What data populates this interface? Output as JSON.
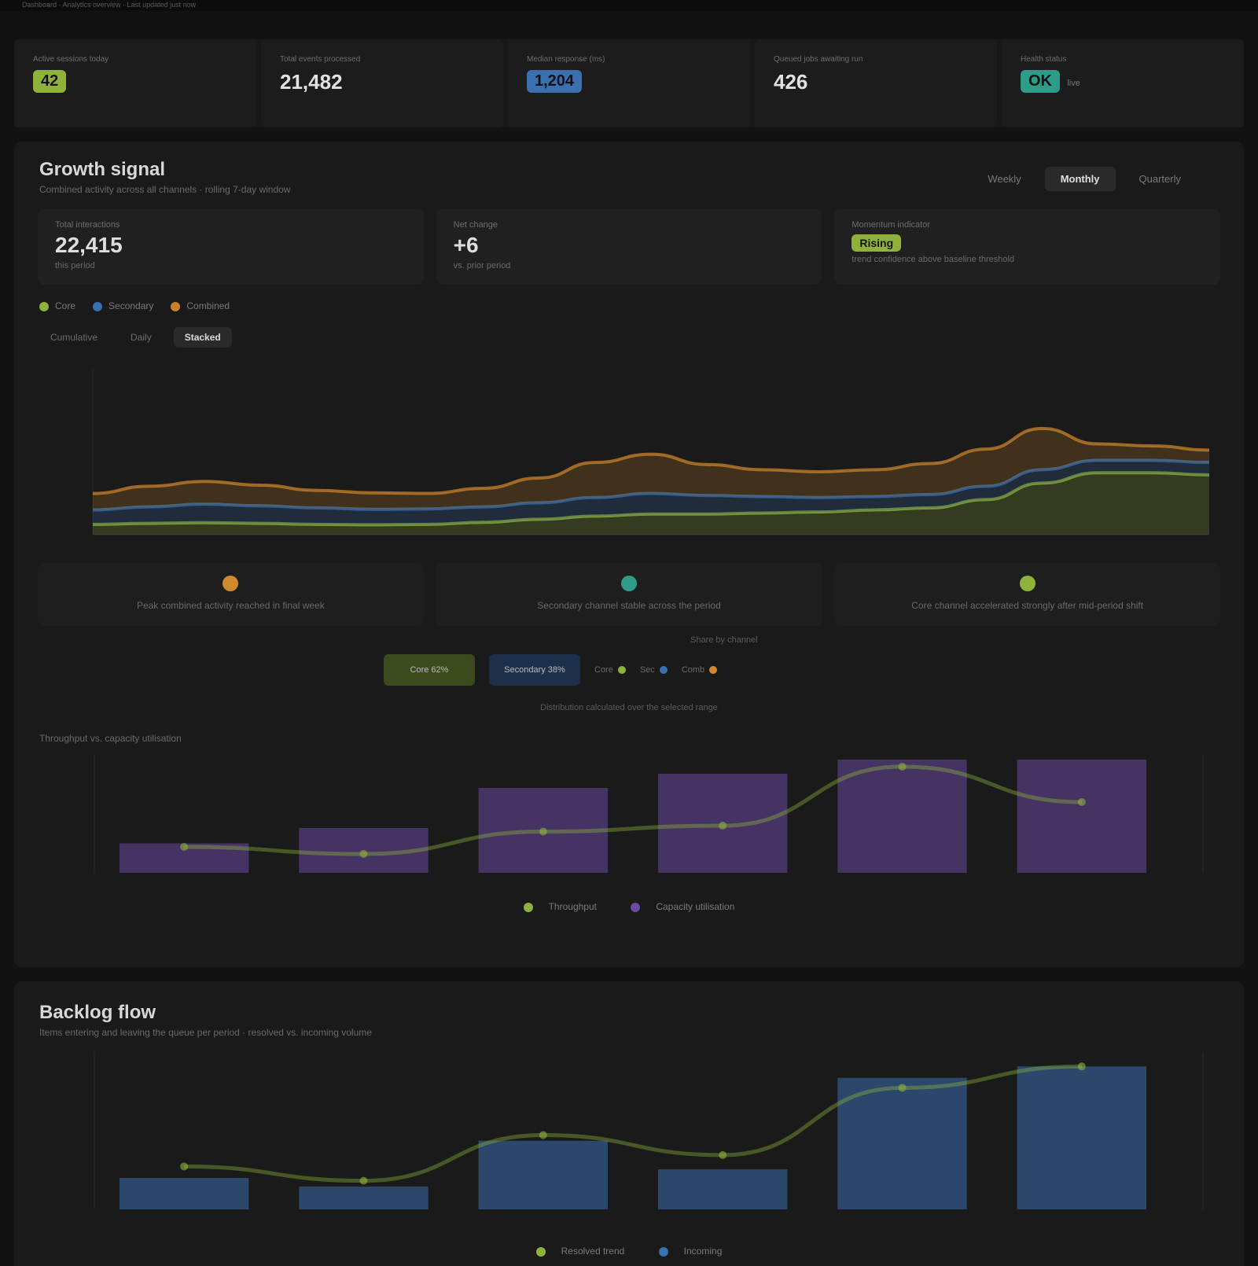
{
  "topbar": {
    "text": "Dashboard · Analytics overview · Last updated just now"
  },
  "stats": [
    {
      "label": "Active sessions today",
      "value": "42",
      "pill_color": "#8fb33a",
      "suffix": ""
    },
    {
      "label": "Total events processed",
      "value": "21,482",
      "pill_color": "",
      "suffix": ""
    },
    {
      "label": "Median response (ms)",
      "value": "1,204",
      "pill_color": "#3a6fb0",
      "suffix": ""
    },
    {
      "label": "Queued jobs awaiting run",
      "value": "426",
      "pill_color": "",
      "suffix": ""
    },
    {
      "label": "Health status",
      "value": "OK",
      "pill_color": "#2f9c8a",
      "suffix": "live"
    }
  ],
  "growth": {
    "title": "Growth signal",
    "subtitle": "Combined activity across all channels · rolling 7-day window",
    "tabs": [
      "Weekly",
      "Monthly",
      "Quarterly"
    ],
    "active_tab": 1,
    "kpis": [
      {
        "label": "Total interactions",
        "value": "22,415",
        "sub": "this period",
        "pill_color": ""
      },
      {
        "label": "Net change",
        "value": "+6",
        "sub": "vs. prior period",
        "pill_color": ""
      },
      {
        "label": "Momentum indicator",
        "value": "Rising",
        "sub": "trend confidence above baseline threshold",
        "pill_color": "#8fb33a"
      }
    ],
    "legend": [
      {
        "label": "Core",
        "color": "#8fb33a"
      },
      {
        "label": "Secondary",
        "color": "#3a6fb0"
      },
      {
        "label": "Combined",
        "color": "#c9822a"
      }
    ],
    "ranges": [
      "Cumulative",
      "Daily",
      "Stacked"
    ],
    "active_range": 2,
    "insights": [
      {
        "color": "#d08a2c",
        "text": "Peak combined activity reached in final week"
      },
      {
        "color": "#2f9c8a",
        "text": "Secondary channel stable across the period"
      },
      {
        "color": "#8fb33a",
        "text": "Core channel accelerated strongly after mid-period shift"
      }
    ],
    "breakdown": {
      "head": "Share by channel",
      "blocks": [
        {
          "label": "Core 62%",
          "color": "#3d4a1e"
        },
        {
          "label": "Secondary 38%",
          "color": "#1e2f4a"
        }
      ],
      "items": [
        {
          "label": "Core",
          "color": "#8fb33a"
        },
        {
          "label": "Sec",
          "color": "#3a6fb0"
        },
        {
          "label": "Comb",
          "color": "#d08a2c"
        }
      ],
      "caption": "Distribution calculated over the selected range"
    },
    "second_chart_caption": "Throughput vs. capacity utilisation",
    "second_legend": [
      {
        "label": "Throughput",
        "color": "#8fb33a"
      },
      {
        "label": "Capacity utilisation",
        "color": "#6a4aa0"
      }
    ]
  },
  "backlog": {
    "title": "Backlog flow",
    "subtitle": "Items entering and leaving the queue per period · resolved vs. incoming volume",
    "legend": [
      {
        "label": "Resolved trend",
        "color": "#8fb33a"
      },
      {
        "label": "Incoming",
        "color": "#3a6fb0"
      }
    ]
  },
  "chart_data": [
    {
      "type": "area",
      "x": [
        0,
        1,
        2,
        3,
        4,
        5,
        6,
        7,
        8,
        9,
        10,
        11,
        12,
        13,
        14,
        15,
        16,
        17,
        18,
        19,
        20
      ],
      "series": [
        {
          "name": "Core",
          "color": "#8fb33a",
          "values": [
            5,
            5.5,
            5.8,
            5.5,
            5,
            4.8,
            5,
            6,
            7.5,
            9,
            10,
            10,
            10.5,
            11,
            12,
            13,
            17,
            25,
            30,
            30,
            29
          ]
        },
        {
          "name": "Secondary",
          "color": "#3a6fb0",
          "values": [
            7,
            8,
            9,
            8.5,
            8,
            7.5,
            7.5,
            7.5,
            8,
            9,
            10,
            9,
            8,
            7,
            6.5,
            6.5,
            6.5,
            6.5,
            6,
            6,
            6
          ]
        },
        {
          "name": "Combined",
          "color": "#c9822a",
          "values": [
            8,
            10,
            11,
            10,
            8.5,
            8,
            7.5,
            9,
            12,
            17,
            19,
            15,
            13,
            12.5,
            13,
            15,
            18,
            20,
            8,
            7,
            6
          ]
        }
      ],
      "ylim": [
        0,
        80
      ]
    },
    {
      "type": "bar",
      "categories": [
        "",
        "",
        "",
        "",
        "",
        ""
      ],
      "series": [
        {
          "name": "Capacity utilisation",
          "color": "#6a4aa0",
          "values": [
            25,
            38,
            72,
            84,
            96,
            96
          ]
        },
        {
          "name": "Throughput",
          "color": "#8fb33a",
          "values": [
            22,
            16,
            35,
            40,
            90,
            60
          ]
        }
      ],
      "ylim": [
        0,
        100
      ]
    },
    {
      "type": "bar",
      "categories": [
        "",
        "",
        "",
        "",
        "",
        ""
      ],
      "series": [
        {
          "name": "Incoming",
          "color": "#3a6fb0",
          "values": [
            22,
            16,
            48,
            28,
            92,
            100
          ]
        },
        {
          "name": "Resolved trend",
          "color": "#8fb33a",
          "values": [
            30,
            20,
            52,
            38,
            85,
            100
          ]
        }
      ],
      "ylim": [
        0,
        110
      ]
    }
  ]
}
